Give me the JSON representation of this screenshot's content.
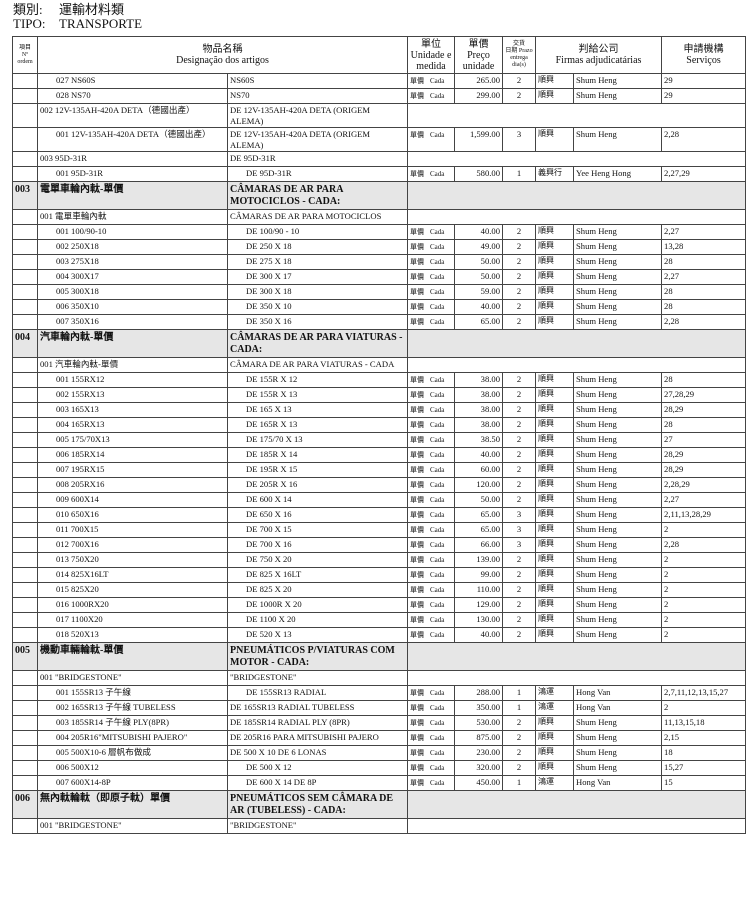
{
  "header": {
    "category_label": "類別:",
    "category": "運輸材料類",
    "type_label": "TIPO:",
    "type": "TRANSPORTE"
  },
  "table": {
    "columns": {
      "no": [
        "項目",
        "Nº",
        "ordem"
      ],
      "name": [
        "物品名稱",
        "Designação dos artigos"
      ],
      "unit": [
        "單位",
        "Unidade e",
        "medida"
      ],
      "price": [
        "單價",
        "Preço",
        "unidade"
      ],
      "days": [
        "交貨",
        "日期 Prazo",
        "entrega",
        "dia(s)"
      ],
      "firm": [
        "判給公司",
        "Firmas adjudicatárias"
      ],
      "services": [
        "申請機構",
        "Serviços"
      ]
    },
    "sections": [
      {
        "groups": [
          {
            "items": [
              [
                "027",
                "NS60S",
                "NS60S",
                "單價",
                "Cada",
                "265.00",
                "2",
                "順興",
                "Shum Heng",
                "29"
              ],
              [
                "028",
                "NS70",
                "NS70",
                "單價",
                "Cada",
                "299.00",
                "2",
                "順興",
                "Shum Heng",
                "29"
              ]
            ]
          },
          {
            "no": "002",
            "name": "12V-135AH-420A DETA（德國出產）",
            "pt": "DE 12V-135AH-420A DETA (ORIGEM ALEMA)",
            "items": [
              [
                "001",
                "12V-135AH-420A DETA（德國出產）",
                "DE 12V-135AH-420A DETA (ORIGEM ALEMA)",
                "單價",
                "Cada",
                "1,599.00",
                "3",
                "順興",
                "Shum Heng",
                "2,28"
              ]
            ]
          },
          {
            "no": "003",
            "name": "95D-31R",
            "pt": "DE 95D-31R",
            "items": [
              [
                "001",
                "95D-31R",
                "DE 95D-31R",
                "單價",
                "Cada",
                "580.00",
                "1",
                "義興行",
                "Yee Heng Hong",
                "2,27,29"
              ]
            ]
          }
        ]
      },
      {
        "no": "003",
        "name": "電單車輪內軚-單價",
        "pt": "CÂMARAS DE AR PARA MOTOCICLOS - CADA:",
        "groups": [
          {
            "no": "001",
            "name": "電單車輪內軚",
            "pt": "CÂMARAS DE AR PARA MOTOCICLOS",
            "items": [
              [
                "001",
                "100/90-10",
                "DE 100/90 - 10",
                "單價",
                "Cada",
                "40.00",
                "2",
                "順興",
                "Shum Heng",
                "2,27"
              ],
              [
                "002",
                "250X18",
                "DE 250 X 18",
                "單價",
                "Cada",
                "49.00",
                "2",
                "順興",
                "Shum Heng",
                "13,28"
              ],
              [
                "003",
                "275X18",
                "DE 275 X 18",
                "單價",
                "Cada",
                "50.00",
                "2",
                "順興",
                "Shum Heng",
                "28"
              ],
              [
                "004",
                "300X17",
                "DE 300 X 17",
                "單價",
                "Cada",
                "50.00",
                "2",
                "順興",
                "Shum Heng",
                "2,27"
              ],
              [
                "005",
                "300X18",
                "DE 300 X 18",
                "單價",
                "Cada",
                "59.00",
                "2",
                "順興",
                "Shum Heng",
                "28"
              ],
              [
                "006",
                "350X10",
                "DE 350 X 10",
                "單價",
                "Cada",
                "40.00",
                "2",
                "順興",
                "Shum Heng",
                "28"
              ],
              [
                "007",
                "350X16",
                "DE 350 X 16",
                "單價",
                "Cada",
                "65.00",
                "2",
                "順興",
                "Shum Heng",
                "2,28"
              ]
            ]
          }
        ]
      },
      {
        "no": "004",
        "name": "汽車輪內軚-單價",
        "pt": "CÂMARAS DE AR PARA VIATURAS - CADA:",
        "groups": [
          {
            "no": "001",
            "name": "汽車輪內軚-單價",
            "pt": "CÂMARA DE AR PARA VIATURAS - CADA",
            "items": [
              [
                "001",
                "155RX12",
                "DE 155R X 12",
                "單價",
                "Cada",
                "38.00",
                "2",
                "順興",
                "Shum Heng",
                "28"
              ],
              [
                "002",
                "155RX13",
                "DE 155R X 13",
                "單價",
                "Cada",
                "38.00",
                "2",
                "順興",
                "Shum Heng",
                "27,28,29"
              ],
              [
                "003",
                "165X13",
                "DE 165 X 13",
                "單價",
                "Cada",
                "38.00",
                "2",
                "順興",
                "Shum Heng",
                "28,29"
              ],
              [
                "004",
                "165RX13",
                "DE 165R X 13",
                "單價",
                "Cada",
                "38.00",
                "2",
                "順興",
                "Shum Heng",
                "28"
              ],
              [
                "005",
                "175/70X13",
                "DE 175/70 X 13",
                "單價",
                "Cada",
                "38.50",
                "2",
                "順興",
                "Shum Heng",
                "27"
              ],
              [
                "006",
                "185RX14",
                "DE 185R X 14",
                "單價",
                "Cada",
                "40.00",
                "2",
                "順興",
                "Shum Heng",
                "28,29"
              ],
              [
                "007",
                "195RX15",
                "DE 195R X 15",
                "單價",
                "Cada",
                "60.00",
                "2",
                "順興",
                "Shum Heng",
                "28,29"
              ],
              [
                "008",
                "205RX16",
                "DE 205R X 16",
                "單價",
                "Cada",
                "120.00",
                "2",
                "順興",
                "Shum Heng",
                "2,28,29"
              ],
              [
                "009",
                "600X14",
                "DE 600 X 14",
                "單價",
                "Cada",
                "50.00",
                "2",
                "順興",
                "Shum Heng",
                "2,27"
              ],
              [
                "010",
                "650X16",
                "DE 650 X 16",
                "單價",
                "Cada",
                "65.00",
                "3",
                "順興",
                "Shum Heng",
                "2,11,13,28,29"
              ],
              [
                "011",
                "700X15",
                "DE 700 X 15",
                "單價",
                "Cada",
                "65.00",
                "3",
                "順興",
                "Shum Heng",
                "2"
              ],
              [
                "012",
                "700X16",
                "DE 700 X 16",
                "單價",
                "Cada",
                "66.00",
                "3",
                "順興",
                "Shum Heng",
                "2,28"
              ],
              [
                "013",
                "750X20",
                "DE 750 X 20",
                "單價",
                "Cada",
                "139.00",
                "2",
                "順興",
                "Shum Heng",
                "2"
              ],
              [
                "014",
                "825X16LT",
                "DE 825 X 16LT",
                "單價",
                "Cada",
                "99.00",
                "2",
                "順興",
                "Shum Heng",
                "2"
              ],
              [
                "015",
                "825X20",
                "DE 825 X 20",
                "單價",
                "Cada",
                "110.00",
                "2",
                "順興",
                "Shum Heng",
                "2"
              ],
              [
                "016",
                "1000RX20",
                "DE 1000R X 20",
                "單價",
                "Cada",
                "129.00",
                "2",
                "順興",
                "Shum Heng",
                "2"
              ],
              [
                "017",
                "1100X20",
                "DE 1100 X 20",
                "單價",
                "Cada",
                "130.00",
                "2",
                "順興",
                "Shum Heng",
                "2"
              ],
              [
                "018",
                "520X13",
                "DE 520 X 13",
                "單價",
                "Cada",
                "40.00",
                "2",
                "順興",
                "Shum Heng",
                "2"
              ]
            ]
          }
        ]
      },
      {
        "no": "005",
        "name": "機動車輛輪軚-單價",
        "pt": "PNEUMÁTICOS P/VIATURAS COM MOTOR - CADA:",
        "groups": [
          {
            "no": "001",
            "name": "\"BRIDGESTONE\"",
            "pt": "\"BRIDGESTONE\"",
            "items": [
              [
                "001",
                "155SR13 子午線",
                "DE 155SR13 RADIAL",
                "單價",
                "Cada",
                "288.00",
                "1",
                "鴻運",
                "Hong Van",
                "2,7,11,12,13,15,27"
              ],
              [
                "002",
                "165SR13 子午線 TUBELESS",
                "DE 165SR13 RADIAL TUBELESS",
                "單價",
                "Cada",
                "350.00",
                "1",
                "鴻運",
                "Hong Van",
                "2"
              ],
              [
                "003",
                "185SR14 子午線 PLY(8PR)",
                "DE 185SR14 RADIAL PLY (8PR)",
                "單價",
                "Cada",
                "530.00",
                "2",
                "順興",
                "Shum Heng",
                "11,13,15,18"
              ],
              [
                "004",
                "205R16\"MITSUBISHI PAJERO\"",
                "DE 205R16 PARA MITSUBISHI PAJERO",
                "單價",
                "Cada",
                "875.00",
                "2",
                "順興",
                "Shum Heng",
                "2,15"
              ],
              [
                "005",
                "500X10-6 層帆布做成",
                "DE 500 X 10 DE 6 LONAS",
                "單價",
                "Cada",
                "230.00",
                "2",
                "順興",
                "Shum Heng",
                "18"
              ],
              [
                "006",
                "500X12",
                "DE 500 X 12",
                "單價",
                "Cada",
                "320.00",
                "2",
                "順興",
                "Shum Heng",
                "15,27"
              ],
              [
                "007",
                "600X14-8P",
                "DE 600 X 14 DE 8P",
                "單價",
                "Cada",
                "450.00",
                "1",
                "鴻運",
                "Hong Van",
                "15"
              ]
            ]
          }
        ]
      },
      {
        "no": "006",
        "name": "無內軚輪軚（即原子軚）單價",
        "pt": "PNEUMÁTICOS SEM CÂMARA DE AR (TUBELESS) - CADA:",
        "groups": [
          {
            "no": "001",
            "name": "\"BRIDGESTONE\"",
            "pt": "\"BRIDGESTONE\"",
            "items": []
          }
        ]
      }
    ]
  }
}
